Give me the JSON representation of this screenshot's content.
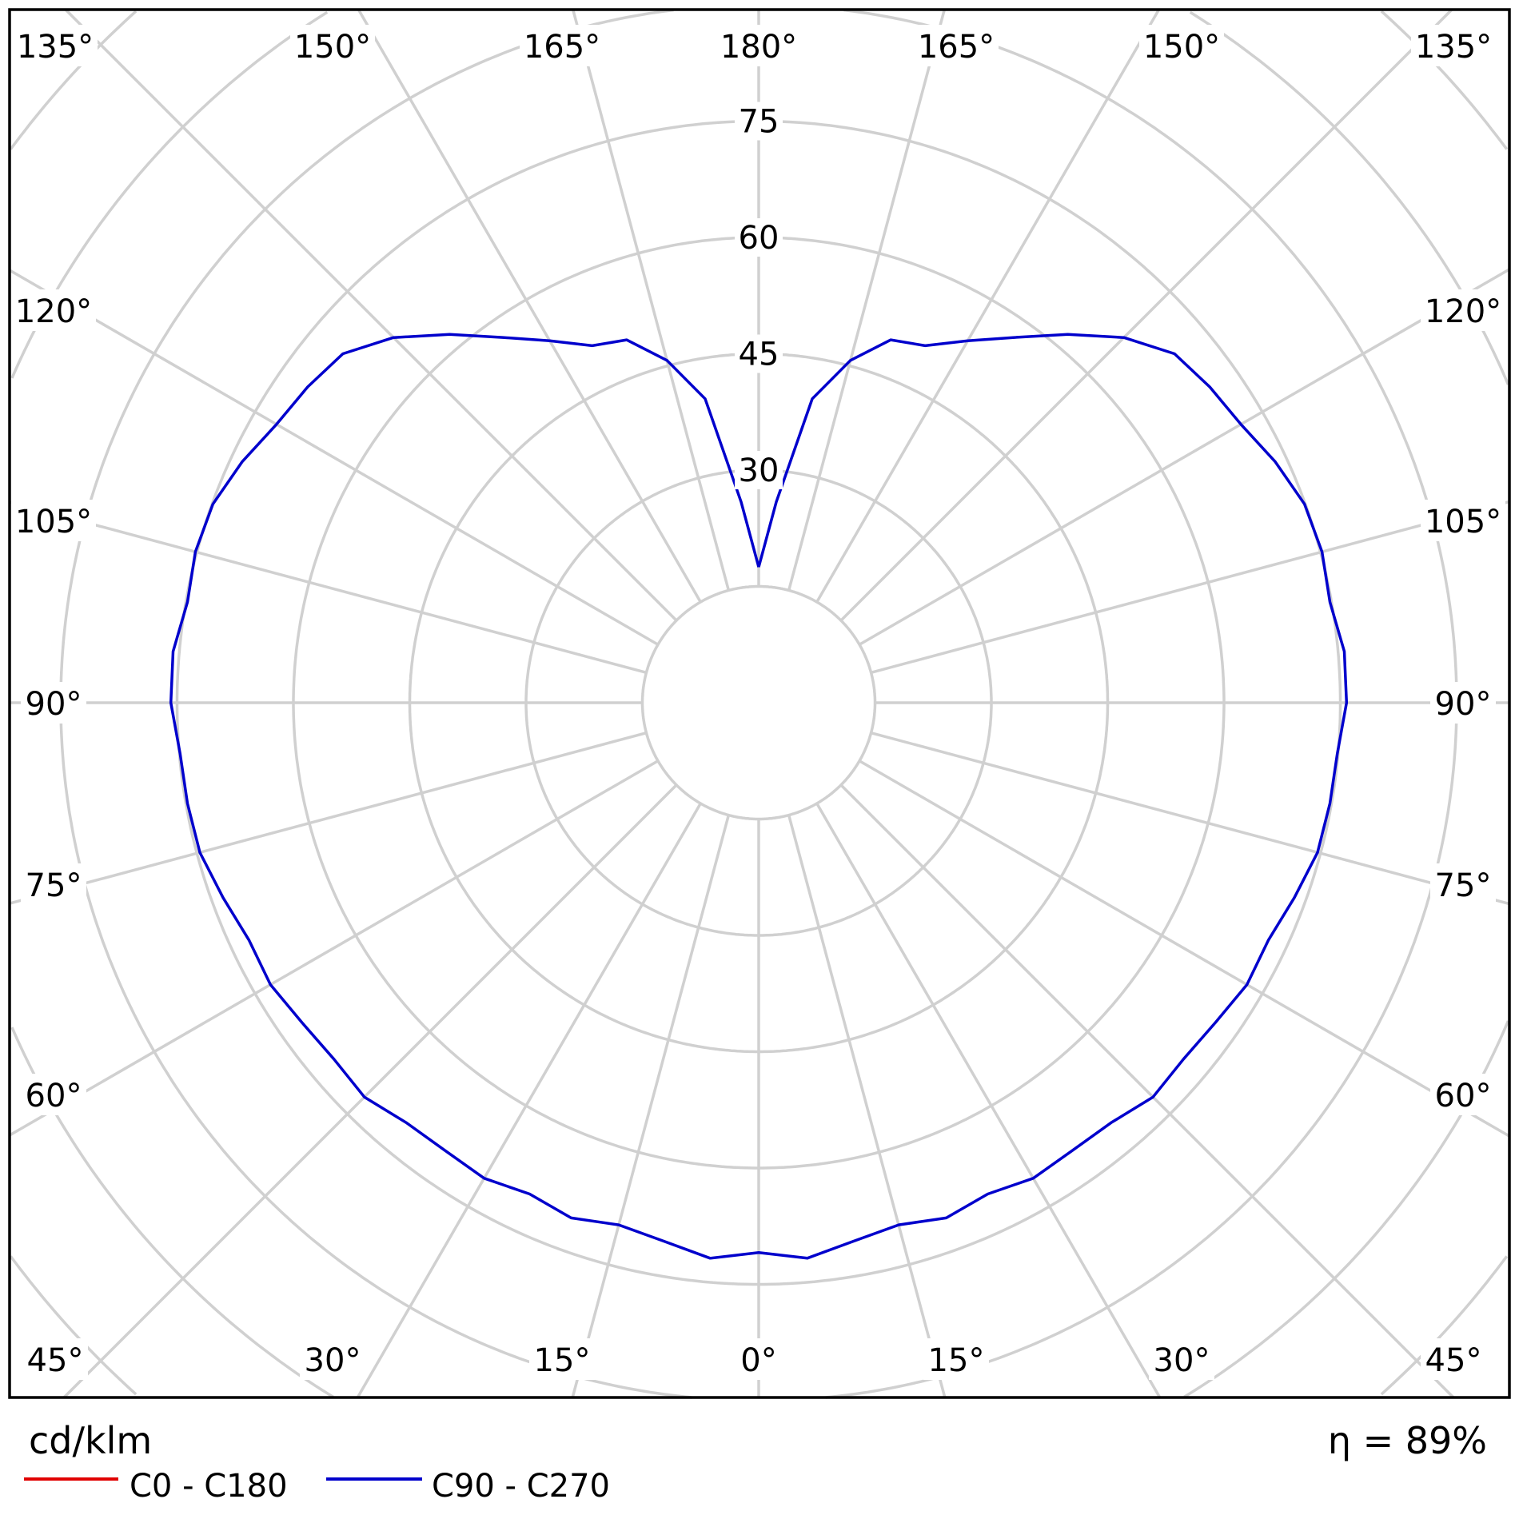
{
  "chart_data": {
    "type": "polar",
    "unit_label": "cd/klm",
    "efficiency_label": "η = 89%",
    "radial_ticks": [
      30,
      45,
      60,
      75
    ],
    "radial_grid_step": 15,
    "angle_grid_step_deg": 15,
    "angle_labels": {
      "top": [
        "135°",
        "150°",
        "165°",
        "180°",
        "165°",
        "150°",
        "135°"
      ],
      "left": [
        "120°",
        "105°",
        "90°",
        "75°",
        "60°"
      ],
      "right": [
        "120°",
        "105°",
        "90°",
        "75°",
        "60°"
      ],
      "bottom": [
        "45°",
        "30°",
        "15°",
        "0°",
        "15°",
        "30°",
        "45°"
      ]
    },
    "grid": true,
    "legend_placement": "bottom-left",
    "series": [
      {
        "name": "C0 - C180",
        "color": "#e00000",
        "gamma": [],
        "values": []
      },
      {
        "name": "C90 - C270",
        "color": "#0000cc",
        "gamma": [
          0,
          5,
          10,
          15,
          20,
          25,
          30,
          35,
          40,
          45,
          50,
          55,
          60,
          65,
          70,
          75,
          80,
          85,
          90,
          95,
          100,
          105,
          110,
          115,
          120,
          125,
          130,
          135,
          140,
          145,
          150,
          155,
          160,
          165,
          170,
          175,
          180
        ],
        "values": [
          70.9,
          71.9,
          70.5,
          69.7,
          70.7,
          69.9,
          70.8,
          70.5,
          70.7,
          71.9,
          71.5,
          71.9,
          72.7,
          72.5,
          73.5,
          74.6,
          74.8,
          74.9,
          75.8,
          75.8,
          74.8,
          75.2,
          74.9,
          73.5,
          71.8,
          71.0,
          70.0,
          66.6,
          62.0,
          57.5,
          53.9,
          50.8,
          49.8,
          45.7,
          39.8,
          26.0,
          17.5
        ]
      }
    ]
  }
}
